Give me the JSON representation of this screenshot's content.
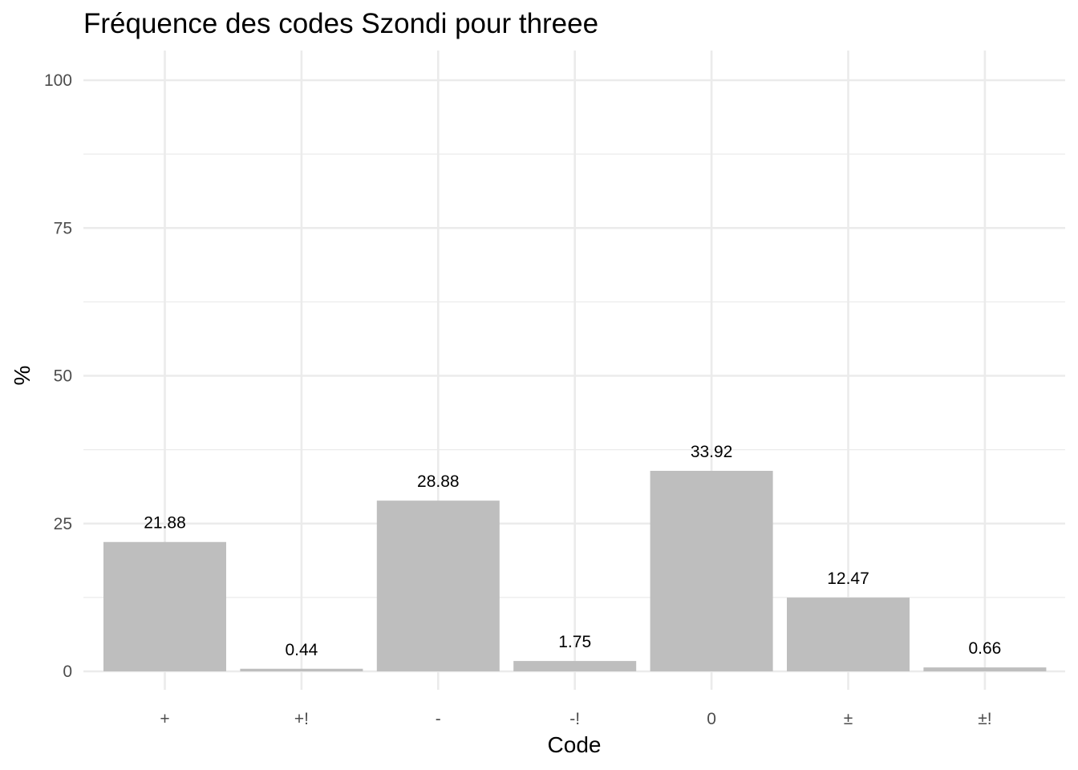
{
  "chart_data": {
    "type": "bar",
    "title": "Fréquence des codes Szondi pour threee",
    "xlabel": "Code",
    "ylabel": "%",
    "categories": [
      "+",
      "+!",
      "-",
      "-!",
      "0",
      "±",
      "±!"
    ],
    "values": [
      21.88,
      0.44,
      28.88,
      1.75,
      33.92,
      12.47,
      0.66
    ],
    "data_labels": [
      "21.88",
      "0.44",
      "28.88",
      "1.75",
      "33.92",
      "12.47",
      "0.66"
    ],
    "ylim": [
      0,
      100
    ],
    "yticks": [
      0,
      25,
      50,
      75,
      100
    ],
    "ytick_labels": [
      "0",
      "25",
      "50",
      "75",
      "100"
    ],
    "grid": true,
    "legend": "none",
    "colors": {
      "bar": "#bebebe",
      "grid": "#ebebeb",
      "tick": "#4d4d4d",
      "text": "#000000"
    }
  }
}
